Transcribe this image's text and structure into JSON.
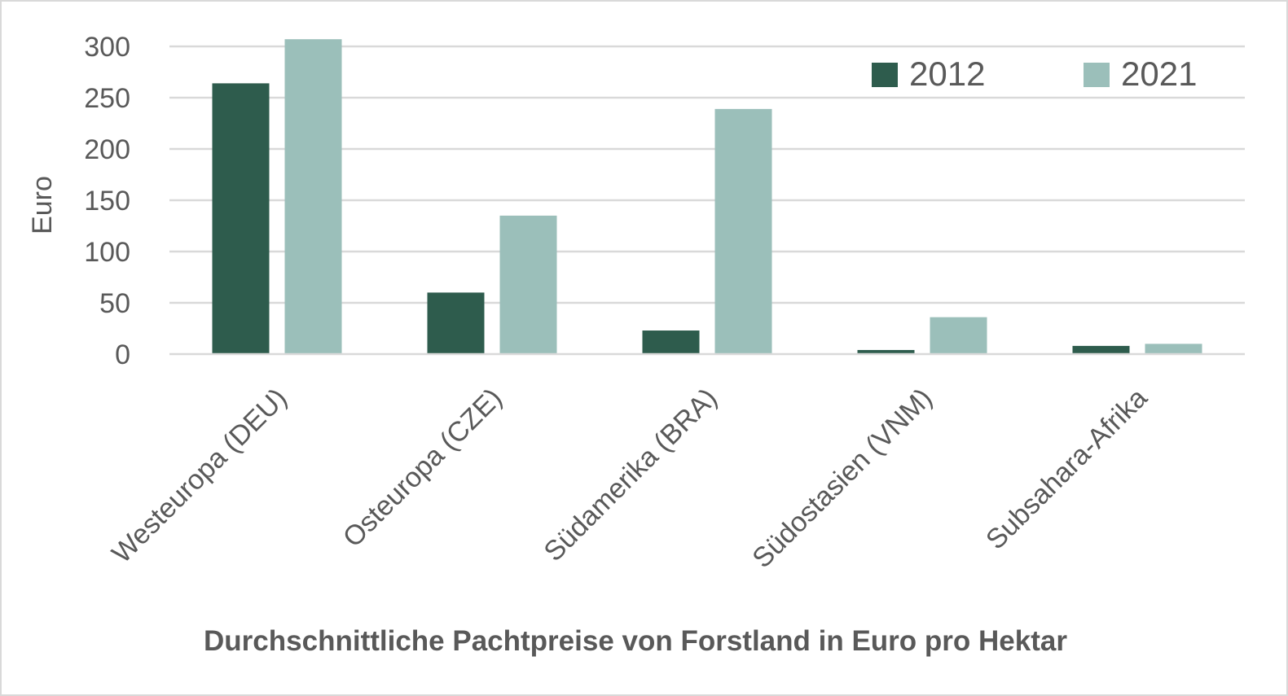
{
  "chart_data": {
    "type": "bar",
    "title": "Durchschnittliche Pachtpreise von Forstland in Euro pro Hektar",
    "xlabel": "",
    "ylabel": "Euro",
    "ylim": [
      0,
      300
    ],
    "yticks": [
      0,
      50,
      100,
      150,
      200,
      250,
      300
    ],
    "grid": true,
    "legend_position": "top-right",
    "categories": [
      "Westeuropa (DEU)",
      "Osteuropa (CZE)",
      "Südamerika (BRA)",
      "Südostasien (VNM)",
      "Subsahara-Afrika"
    ],
    "series": [
      {
        "name": "2012",
        "color": "#2e5c4d",
        "values": [
          264,
          60,
          23,
          4,
          8
        ]
      },
      {
        "name": "2021",
        "color": "#9bbfba",
        "values": [
          307,
          135,
          239,
          36,
          10
        ]
      }
    ]
  },
  "colors": {
    "grid": "#d9d9d9",
    "text": "#595959",
    "border": "#d9d9d9"
  }
}
